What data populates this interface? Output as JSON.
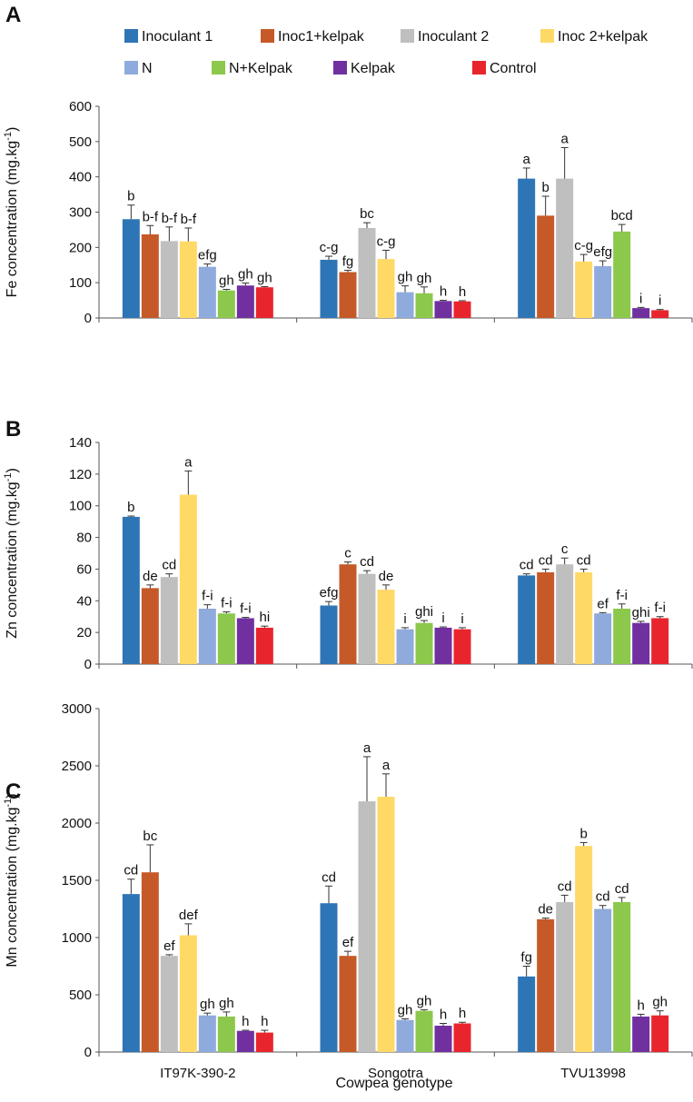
{
  "legend": [
    {
      "name": "Inoculant 1",
      "color": "#2e75b6"
    },
    {
      "name": "Inoc1+kelpak",
      "color": "#c55a28"
    },
    {
      "name": "Inoculant 2",
      "color": "#bfbfbf"
    },
    {
      "name": "Inoc 2+kelpak",
      "color": "#ffd966"
    },
    {
      "name": "N",
      "color": "#8faadc"
    },
    {
      "name": "N+Kelpak",
      "color": "#8cc84b"
    },
    {
      "name": "Kelpak",
      "color": "#7030a0"
    },
    {
      "name": "Control",
      "color": "#e8252d"
    }
  ],
  "xlabel": "Cowpea genotype",
  "chart_data": [
    {
      "type": "bar",
      "panel": "A",
      "ylabel": "Fe concentration (mg.kg",
      "ylabel_sup": "-1",
      "ylabel_close": ")",
      "ylim": [
        0,
        600
      ],
      "yticks": [
        0,
        100,
        200,
        300,
        400,
        500,
        600
      ],
      "categories": [
        "IT97K-390-2",
        "Songotra",
        "TVU13998"
      ],
      "series": [
        {
          "name": "Inoculant 1",
          "values": [
            280,
            165,
            395
          ],
          "errors": [
            40,
            10,
            30
          ],
          "letters": [
            "b",
            "c-g",
            "a"
          ]
        },
        {
          "name": "Inoc1+kelpak",
          "values": [
            237,
            130,
            290
          ],
          "errors": [
            25,
            5,
            55
          ],
          "letters": [
            "b-f",
            "fg",
            "b"
          ]
        },
        {
          "name": "Inoculant 2",
          "values": [
            218,
            255,
            395
          ],
          "errors": [
            40,
            15,
            88
          ],
          "letters": [
            "b-f",
            "bc",
            "a"
          ]
        },
        {
          "name": "Inoc 2+kelpak",
          "values": [
            217,
            167,
            160
          ],
          "errors": [
            38,
            25,
            20
          ],
          "letters": [
            "b-f",
            "c-g",
            "c-g"
          ]
        },
        {
          "name": "N",
          "values": [
            145,
            73,
            147
          ],
          "errors": [
            8,
            18,
            15
          ],
          "letters": [
            "efg",
            "gh",
            "efg"
          ]
        },
        {
          "name": "N+Kelpak",
          "values": [
            78,
            70,
            245
          ],
          "errors": [
            3,
            18,
            20
          ],
          "letters": [
            "gh",
            "gh",
            "bcd"
          ]
        },
        {
          "name": "Kelpak",
          "values": [
            92,
            48,
            28
          ],
          "errors": [
            7,
            2,
            2
          ],
          "letters": [
            "gh",
            "h",
            "i"
          ]
        },
        {
          "name": "Control",
          "values": [
            87,
            47,
            22
          ],
          "errors": [
            2,
            2,
            2
          ],
          "letters": [
            "gh",
            "h",
            "i"
          ]
        }
      ]
    },
    {
      "type": "bar",
      "panel": "B",
      "ylabel": "Zn concentration (mg.kg",
      "ylabel_sup": "-1",
      "ylabel_close": ")",
      "ylim": [
        0,
        140
      ],
      "yticks": [
        0,
        20,
        40,
        60,
        80,
        100,
        120,
        140
      ],
      "categories": [
        "IT97K-390-2",
        "Songotra",
        "TVU13998"
      ],
      "series": [
        {
          "name": "Inoculant 1",
          "values": [
            93,
            37,
            56
          ],
          "errors": [
            0.5,
            2.5,
            1
          ],
          "letters": [
            "b",
            "efg",
            "cd"
          ]
        },
        {
          "name": "Inoc1+kelpak",
          "values": [
            48,
            63,
            58
          ],
          "errors": [
            2,
            1.5,
            2
          ],
          "letters": [
            "de",
            "c",
            "cd"
          ]
        },
        {
          "name": "Inoculant 2",
          "values": [
            55,
            57,
            63
          ],
          "errors": [
            2,
            2,
            4
          ],
          "letters": [
            "cd",
            "cd",
            "c"
          ]
        },
        {
          "name": "Inoc 2+kelpak",
          "values": [
            107,
            47,
            58
          ],
          "errors": [
            15,
            3,
            2
          ],
          "letters": [
            "a",
            "de",
            "cd"
          ]
        },
        {
          "name": "N",
          "values": [
            35,
            22,
            32
          ],
          "errors": [
            2.5,
            1,
            0.5
          ],
          "letters": [
            "f-i",
            "i",
            "ef"
          ]
        },
        {
          "name": "N+Kelpak",
          "values": [
            32,
            26,
            35
          ],
          "errors": [
            1,
            1.5,
            3
          ],
          "letters": [
            "f-i",
            "ghi",
            "f-i"
          ]
        },
        {
          "name": "Kelpak",
          "values": [
            29,
            23,
            26
          ],
          "errors": [
            0.5,
            0.5,
            1
          ],
          "letters": [
            "f-i",
            "i",
            "ghi"
          ]
        },
        {
          "name": "Control",
          "values": [
            23,
            22,
            29
          ],
          "errors": [
            1,
            1,
            1
          ],
          "letters": [
            "hi",
            "i",
            "f-i"
          ]
        }
      ]
    },
    {
      "type": "bar",
      "panel": "C",
      "ylabel": "Mn concentration (mg.kg",
      "ylabel_sup": "-1",
      "ylabel_close": ")",
      "ylim": [
        0,
        3000
      ],
      "yticks": [
        0,
        500,
        1000,
        1500,
        2000,
        2500,
        3000
      ],
      "categories": [
        "IT97K-390-2",
        "Songotra",
        "TVU13998"
      ],
      "series": [
        {
          "name": "Inoculant 1",
          "values": [
            1380,
            1300,
            660
          ],
          "errors": [
            130,
            150,
            90
          ],
          "letters": [
            "cd",
            "cd",
            "fg"
          ]
        },
        {
          "name": "Inoc1+kelpak",
          "values": [
            1570,
            840,
            1160
          ],
          "errors": [
            240,
            40,
            10
          ],
          "letters": [
            "bc",
            "ef",
            "de"
          ]
        },
        {
          "name": "Inoculant 2",
          "values": [
            840,
            2190,
            1310
          ],
          "errors": [
            10,
            390,
            60
          ],
          "letters": [
            "ef",
            "a",
            "cd"
          ]
        },
        {
          "name": "Inoc 2+kelpak",
          "values": [
            1020,
            2230,
            1800
          ],
          "errors": [
            100,
            200,
            30
          ],
          "letters": [
            "def",
            "a",
            "b"
          ]
        },
        {
          "name": "N",
          "values": [
            320,
            280,
            1250
          ],
          "errors": [
            20,
            10,
            30
          ],
          "letters": [
            "gh",
            "gh",
            "cd"
          ]
        },
        {
          "name": "N+Kelpak",
          "values": [
            310,
            360,
            1310
          ],
          "errors": [
            40,
            10,
            40
          ],
          "letters": [
            "gh",
            "gh",
            "cd"
          ]
        },
        {
          "name": "Kelpak",
          "values": [
            185,
            230,
            310
          ],
          "errors": [
            5,
            20,
            20
          ],
          "letters": [
            "h",
            "h",
            "h"
          ]
        },
        {
          "name": "Control",
          "values": [
            170,
            250,
            320
          ],
          "errors": [
            20,
            10,
            40
          ],
          "letters": [
            "h",
            "h",
            "gh"
          ]
        }
      ]
    }
  ]
}
